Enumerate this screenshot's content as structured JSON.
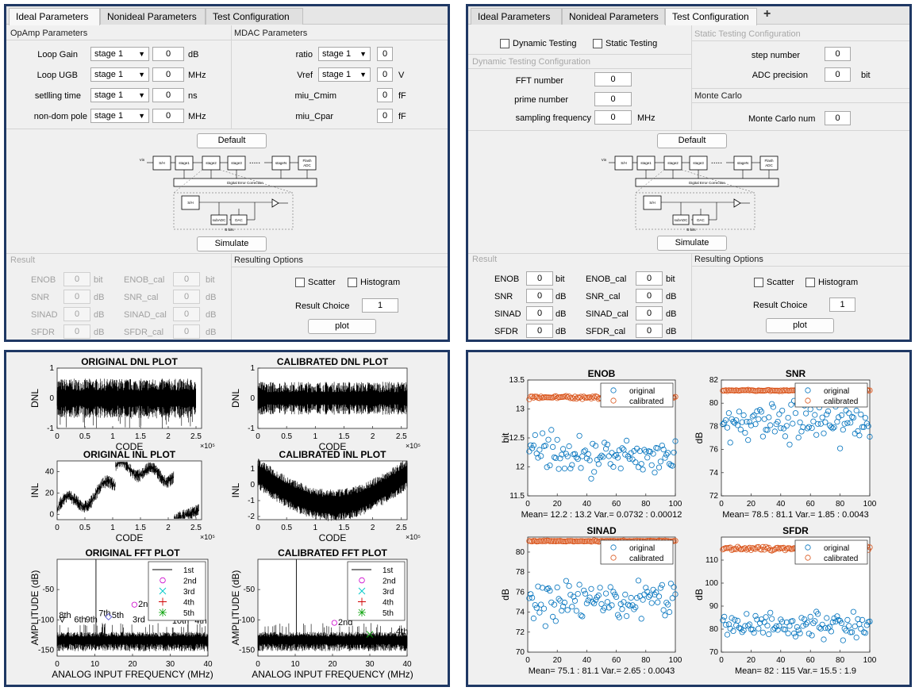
{
  "tabs": {
    "ideal": "Ideal Parameters",
    "nonideal": "Nonideal Parameters",
    "test": "Test Configuration",
    "add": "+"
  },
  "left_gui": {
    "opamp_title": "OpAmp Parameters",
    "mdac_title": "MDAC Parameters",
    "opamp_rows": [
      {
        "label": "Loop Gain",
        "stage": "stage 1",
        "value": "0",
        "unit": "dB"
      },
      {
        "label": "Loop UGB",
        "stage": "stage 1",
        "value": "0",
        "unit": "MHz"
      },
      {
        "label": "setlling time",
        "stage": "stage 1",
        "value": "0",
        "unit": "ns"
      },
      {
        "label": "non-dom pole",
        "stage": "stage 1",
        "value": "0",
        "unit": "MHz"
      }
    ],
    "mdac_rows": [
      {
        "label": "ratio",
        "stage": "stage 1",
        "value": "0",
        "unit": ""
      },
      {
        "label": "Vref",
        "stage": "stage 1",
        "value": "0",
        "unit": "V"
      },
      {
        "label": "miu_Cmim",
        "stage": "",
        "value": "0",
        "unit": "fF"
      },
      {
        "label": "miu_Cpar",
        "stage": "",
        "value": "0",
        "unit": "fF"
      }
    ],
    "default_btn": "Default",
    "simulate_btn": "Simulate",
    "result_title": "Result",
    "results": [
      {
        "label": "ENOB",
        "value": "0",
        "unit": "bit",
        "label2": "ENOB_cal",
        "value2": "0",
        "unit2": "bit"
      },
      {
        "label": "SNR",
        "value": "0",
        "unit": "dB",
        "label2": "SNR_cal",
        "value2": "0",
        "unit2": "dB"
      },
      {
        "label": "SINAD",
        "value": "0",
        "unit": "dB",
        "label2": "SINAD_cal",
        "value2": "0",
        "unit2": "dB"
      },
      {
        "label": "SFDR",
        "value": "0",
        "unit": "dB",
        "label2": "SFDR_cal",
        "value2": "0",
        "unit2": "dB"
      }
    ],
    "options_title": "Resulting Options",
    "scatter": "Scatter",
    "histogram": "Histogram",
    "result_choice_label": "Result Choice",
    "result_choice_value": "1",
    "plot_btn": "plot"
  },
  "right_gui": {
    "dynamic_testing": "Dynamic Testing",
    "static_testing": "Static Testing",
    "dyn_title": "Dynamic Testing Configuration",
    "static_title": "Static Testing Configuration",
    "dyn_rows": [
      {
        "label": "FFT number",
        "value": "0",
        "unit": ""
      },
      {
        "label": "prime number",
        "value": "0",
        "unit": ""
      },
      {
        "label": "sampling frequency",
        "value": "0",
        "unit": "MHz"
      }
    ],
    "static_rows": [
      {
        "label": "step number",
        "value": "0",
        "unit": ""
      },
      {
        "label": "ADC precision",
        "value": "0",
        "unit": "bit"
      }
    ],
    "monte_title": "Monte Carlo",
    "monte_label": "Monte Carlo num",
    "monte_value": "0",
    "default_btn": "Default",
    "simulate_btn": "Simulate",
    "result_title": "Result",
    "results": [
      {
        "label": "ENOB",
        "value": "0",
        "unit": "bit",
        "label2": "ENOB_cal",
        "value2": "0",
        "unit2": "bit"
      },
      {
        "label": "SNR",
        "value": "0",
        "unit": "dB",
        "label2": "SNR_cal",
        "value2": "0",
        "unit2": "dB"
      },
      {
        "label": "SINAD",
        "value": "0",
        "unit": "dB",
        "label2": "SINAD_cal",
        "value2": "0",
        "unit2": "dB"
      },
      {
        "label": "SFDR",
        "value": "0",
        "unit": "dB",
        "label2": "SFDR_cal",
        "value2": "0",
        "unit2": "dB"
      }
    ],
    "options_title": "Resulting Options",
    "scatter": "Scatter",
    "histogram": "Histogram",
    "result_choice_label": "Result Choice",
    "result_choice_value": "1",
    "plot_btn": "plot"
  },
  "diagram_text": {
    "sh": "S/H",
    "stage1": "stage1",
    "stage2": "stage2",
    "stage3": "stage3",
    "dots": "• • • • •",
    "stageN": "stageN",
    "flash": "Flash",
    "adc": "ADC",
    "dec": "Digital Error Correction",
    "subadc": "subADC",
    "dac": "DAC",
    "bits": "B bits",
    "vin": "Vin"
  },
  "chart_data": [
    {
      "type": "line",
      "title": "ORIGINAL DNL PLOT",
      "xlabel": "CODE",
      "ylabel": "DNL",
      "xlim": [
        0,
        2.6
      ],
      "ylim": [
        -1,
        1
      ],
      "x_ticks": [
        "0",
        "0.5",
        "1",
        "1.5",
        "2",
        "2.5"
      ],
      "y_ticks": [
        "-1",
        "0",
        "1"
      ],
      "x_exponent": "×10⁵"
    },
    {
      "type": "line",
      "title": "CALIBRATED DNL PLOT",
      "xlabel": "CODE",
      "ylabel": "DNL",
      "xlim": [
        0,
        2.6
      ],
      "ylim": [
        -1,
        1
      ],
      "x_ticks": [
        "0",
        "0.5",
        "1",
        "1.5",
        "2",
        "2.5"
      ],
      "y_ticks": [
        "-1",
        "0",
        "1"
      ],
      "x_exponent": "×10⁵"
    },
    {
      "type": "line",
      "title": "ORIGINAL INL PLOT",
      "xlabel": "CODE",
      "ylabel": "INL",
      "xlim": [
        0,
        2.6
      ],
      "ylim": [
        -5,
        50
      ],
      "x_ticks": [
        "0",
        "0.5",
        "1",
        "1.5",
        "2",
        "2.5"
      ],
      "y_ticks": [
        "0",
        "20",
        "40"
      ],
      "x_exponent": "×10⁵"
    },
    {
      "type": "line",
      "title": "CALIBRATED INL PLOT",
      "xlabel": "CODE",
      "ylabel": "INL",
      "xlim": [
        0,
        2.6
      ],
      "ylim": [
        -2.2,
        1.5
      ],
      "x_ticks": [
        "0",
        "0.5",
        "1",
        "1.5",
        "2",
        "2.5"
      ],
      "y_ticks": [
        "-2",
        "-1",
        "0",
        "1"
      ],
      "x_exponent": "×10⁵"
    },
    {
      "type": "line",
      "title": "ORIGINAL FFT PLOT",
      "xlabel": "ANALOG INPUT FREQUENCY (MHz)",
      "ylabel": "AMPLITUDE (dB)",
      "xlim": [
        0,
        40
      ],
      "ylim": [
        -160,
        0
      ],
      "x_ticks": [
        "0",
        "10",
        "20",
        "30",
        "40"
      ],
      "y_ticks": [
        "-150",
        "-100",
        "-50"
      ],
      "legend": [
        "1st",
        "2nd",
        "3rd",
        "4th",
        "5th"
      ],
      "legend_position": "top-right",
      "annotations": [
        "2nd",
        "7th",
        "8th",
        "5th",
        "6th",
        "9th",
        "3rd",
        "4th",
        "10th"
      ]
    },
    {
      "type": "line",
      "title": "CALIBRATED FFT PLOT",
      "xlabel": "ANALOG INPUT FREQUENCY (MHz)",
      "ylabel": "AMPLITUDE (dB)",
      "xlim": [
        0,
        40
      ],
      "ylim": [
        -160,
        0
      ],
      "x_ticks": [
        "0",
        "10",
        "20",
        "30",
        "40"
      ],
      "y_ticks": [
        "-150",
        "-100",
        "-50"
      ],
      "legend": [
        "1st",
        "2nd",
        "3rd",
        "4th",
        "5th"
      ],
      "legend_position": "top-right",
      "annotations": [
        "2nd",
        "4th"
      ]
    },
    {
      "type": "scatter",
      "title": "ENOB",
      "ylabel": "bit",
      "xlim": [
        0,
        100
      ],
      "ylim": [
        11.5,
        13.5
      ],
      "x_ticks": [
        "0",
        "20",
        "40",
        "60",
        "80",
        "100"
      ],
      "y_ticks": [
        "11.5",
        "12",
        "12.5",
        "13",
        "13.5"
      ],
      "legend": [
        "original",
        "calibrated"
      ],
      "legend_position": "top-right",
      "stats": "Mean= 12.2 : 13.2  Var.= 0.0732 : 0.00012",
      "series": [
        {
          "name": "original",
          "mean": 12.2,
          "var": 0.0732
        },
        {
          "name": "calibrated",
          "mean": 13.2,
          "var": 0.00012
        }
      ]
    },
    {
      "type": "scatter",
      "title": "SNR",
      "ylabel": "dB",
      "xlim": [
        0,
        100
      ],
      "ylim": [
        72,
        82
      ],
      "x_ticks": [
        "0",
        "20",
        "40",
        "60",
        "80",
        "100"
      ],
      "y_ticks": [
        "72",
        "74",
        "76",
        "78",
        "80",
        "82"
      ],
      "legend": [
        "original",
        "calibrated"
      ],
      "legend_position": "top-right",
      "stats": "Mean= 78.5 : 81.1  Var.= 1.85 : 0.0043",
      "series": [
        {
          "name": "original",
          "mean": 78.5,
          "var": 1.85
        },
        {
          "name": "calibrated",
          "mean": 81.1,
          "var": 0.0043
        }
      ]
    },
    {
      "type": "scatter",
      "title": "SINAD",
      "ylabel": "dB",
      "xlim": [
        0,
        100
      ],
      "ylim": [
        70,
        81.5
      ],
      "x_ticks": [
        "0",
        "20",
        "40",
        "60",
        "80",
        "100"
      ],
      "y_ticks": [
        "70",
        "72",
        "74",
        "76",
        "78",
        "80"
      ],
      "legend": [
        "original",
        "calibrated"
      ],
      "legend_position": "top-right",
      "stats": "Mean= 75.1 : 81.1  Var.= 2.65 : 0.0043",
      "series": [
        {
          "name": "original",
          "mean": 75.1,
          "var": 2.65
        },
        {
          "name": "calibrated",
          "mean": 81.1,
          "var": 0.0043
        }
      ]
    },
    {
      "type": "scatter",
      "title": "SFDR",
      "ylabel": "dB",
      "xlim": [
        0,
        100
      ],
      "ylim": [
        70,
        120
      ],
      "x_ticks": [
        "0",
        "20",
        "40",
        "60",
        "80",
        "100"
      ],
      "y_ticks": [
        "70",
        "80",
        "90",
        "100",
        "110"
      ],
      "legend": [
        "original",
        "calibrated"
      ],
      "legend_position": "top-right",
      "stats": "Mean= 82 : 115  Var.= 15.5 : 1.9",
      "series": [
        {
          "name": "original",
          "mean": 82,
          "var": 15.5
        },
        {
          "name": "calibrated",
          "mean": 115,
          "var": 1.9
        }
      ]
    }
  ]
}
